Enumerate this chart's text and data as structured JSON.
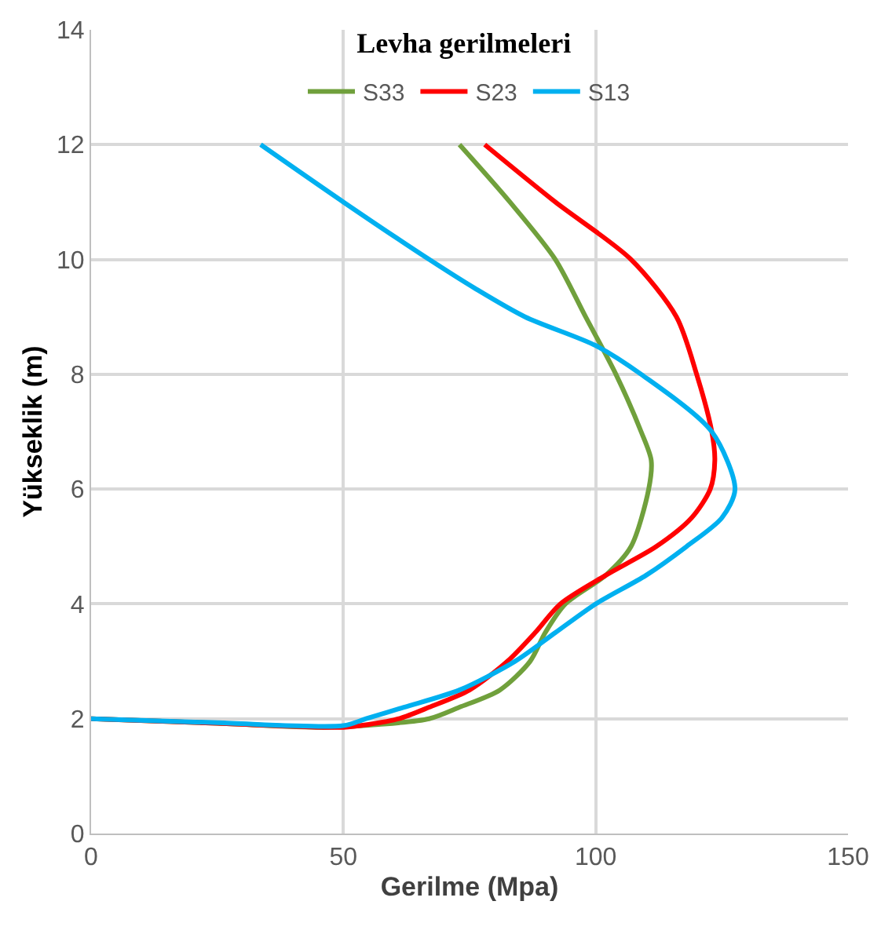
{
  "chart_data": {
    "type": "line",
    "title": "Levha gerilmeleri",
    "xlabel": "Gerilme (Mpa)",
    "ylabel": "Yükseklik (m)",
    "xlim": [
      0,
      150
    ],
    "xticks": [
      0,
      50,
      100,
      150
    ],
    "ylim": [
      0,
      14
    ],
    "yticks": [
      0,
      2,
      4,
      6,
      8,
      10,
      12,
      14
    ],
    "grid": true,
    "legend": "top",
    "marker": "none",
    "line_style": "solid",
    "series": [
      {
        "name": "S33",
        "color": "#70a03c",
        "x": [
          0,
          25,
          46,
          57,
          67,
          73,
          81,
          87,
          90,
          94,
          102,
          107,
          110.5,
          111,
          109,
          104,
          98,
          92,
          83,
          73
        ],
        "values": [
          2,
          1.92,
          1.85,
          1.9,
          2,
          2.2,
          2.5,
          3,
          3.5,
          4,
          4.5,
          5,
          6,
          6.5,
          7,
          8,
          9,
          10,
          11,
          12
        ]
      },
      {
        "name": "S23",
        "color": "#ff0000",
        "x": [
          0,
          25,
          50,
          55,
          61,
          67,
          75,
          82.5,
          88,
          93,
          102,
          112,
          119,
          122.7,
          123.6,
          123,
          120,
          116,
          107,
          92,
          78
        ],
        "values": [
          2,
          1.92,
          1.85,
          1.9,
          2,
          2.2,
          2.5,
          3,
          3.5,
          4,
          4.5,
          5,
          5.5,
          6,
          6.5,
          7,
          8,
          9,
          10,
          11,
          12
        ]
      },
      {
        "name": "S13",
        "color": "#00b0f0",
        "x": [
          0,
          25,
          50,
          54.5,
          62,
          73,
          84,
          92,
          100,
          110,
          118,
          125,
          127.6,
          123,
          109,
          100,
          86,
          76,
          67,
          50,
          33.6
        ],
        "values": [
          2,
          1.93,
          1.88,
          2,
          2.2,
          2.5,
          3,
          3.5,
          4,
          4.5,
          5,
          5.5,
          6,
          7,
          8,
          8.5,
          9,
          9.5,
          10,
          11,
          12
        ]
      }
    ]
  }
}
